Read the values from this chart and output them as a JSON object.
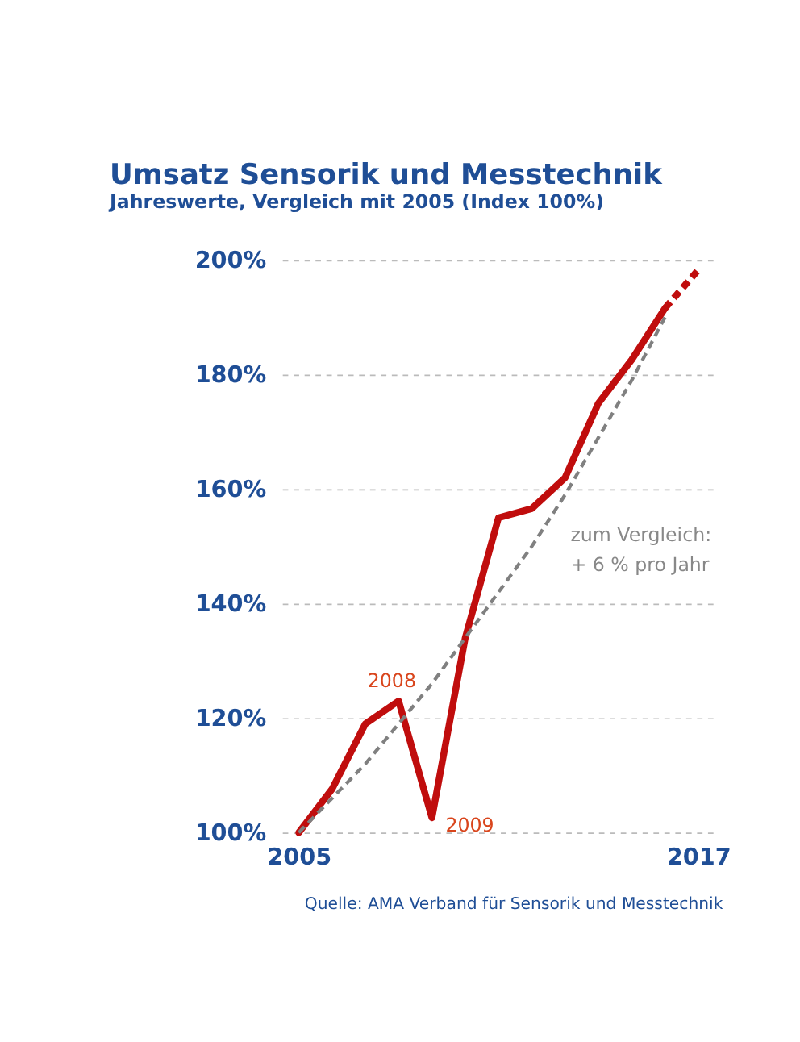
{
  "chart_data": {
    "type": "line",
    "title": "Umsatz Sensorik und Messtechnik",
    "subtitle": "Jahreswerte, Vergleich mit 2005 (Index 100%)",
    "x": [
      2005,
      2006,
      2007,
      2008,
      2009,
      2010,
      2011,
      2012,
      2013,
      2014,
      2015,
      2016,
      2017
    ],
    "series": [
      {
        "color": "#c00d0d",
        "line_style": "solid",
        "values": [
          100,
          107.6,
          119,
          123,
          102.6,
          134,
          155,
          156.6,
          162,
          175,
          182.6,
          191.6,
          null
        ]
      },
      {
        "color": "#c00d0d",
        "line_style": "dashed",
        "values": [
          null,
          null,
          null,
          null,
          null,
          null,
          null,
          null,
          null,
          null,
          null,
          191.6,
          198.3
        ]
      },
      {
        "color": "#808080",
        "line_style": "dashed",
        "values": [
          100,
          106,
          112,
          119,
          126,
          134,
          142,
          150,
          159,
          169,
          179,
          190,
          null
        ]
      }
    ],
    "xlim": [
      2004.5,
      2017.6
    ],
    "xticks": [
      2005,
      2017
    ],
    "ylim": [
      100,
      200
    ],
    "yticks": [
      {
        "value": 100,
        "label": "100%"
      },
      {
        "value": 120,
        "label": "120%"
      },
      {
        "value": 140,
        "label": "140%"
      },
      {
        "value": 160,
        "label": "160%"
      },
      {
        "value": 180,
        "label": "180%"
      },
      {
        "value": 200,
        "label": "200%"
      }
    ],
    "grid": "y",
    "marker": "none",
    "annotations": [
      {
        "text": "2008",
        "x": 2008,
        "y": 123
      },
      {
        "text": "2009",
        "x": 2009,
        "y": 102.6
      },
      {
        "text": "zum Vergleich:\n+ 6 % pro Jahr",
        "x": 2013,
        "y": 159
      },
      "Quelle: AMA Verband für Sensorik und Messtechnik"
    ]
  }
}
